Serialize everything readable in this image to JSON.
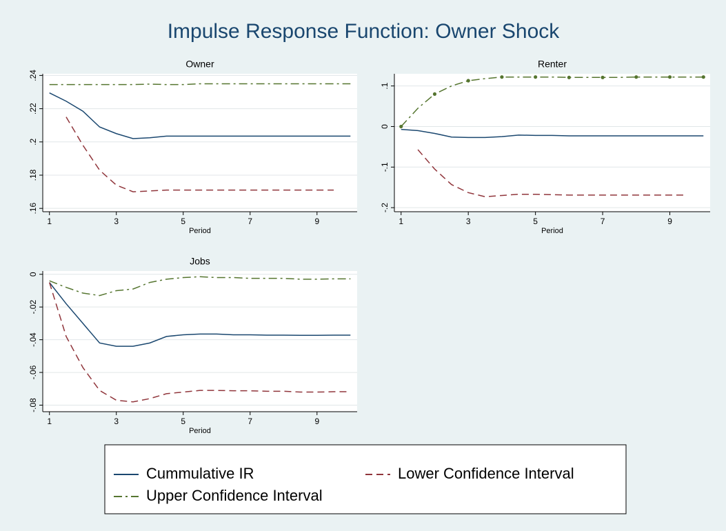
{
  "title": "Impulse Response Function: Owner Shock",
  "chart_data": [
    {
      "type": "line",
      "title": "Owner",
      "xlabel": "Period",
      "x": [
        1,
        1.5,
        2,
        2.5,
        3,
        3.5,
        4,
        4.5,
        5,
        5.5,
        6,
        6.5,
        7,
        7.5,
        8,
        8.5,
        9,
        9.5,
        10
      ],
      "xlim": [
        0.8,
        10.2
      ],
      "xticks": [
        1,
        3,
        5,
        7,
        9
      ],
      "ylim": [
        0.158,
        0.241
      ],
      "yticks": [
        {
          "value": 0.16,
          "label": ".16"
        },
        {
          "value": 0.18,
          "label": ".18"
        },
        {
          "value": 0.2,
          "label": ".2"
        },
        {
          "value": 0.22,
          "label": ".22"
        },
        {
          "value": 0.24,
          "label": ".24"
        }
      ],
      "grid": true,
      "series": [
        {
          "name": "Cummulative IR",
          "color": "#1a476f",
          "dash": "solid",
          "values": [
            0.2295,
            0.2245,
            0.2185,
            0.209,
            0.205,
            0.202,
            0.2025,
            0.2035,
            0.2035,
            0.2035,
            0.2035,
            0.2035,
            0.2035,
            0.2035,
            0.2035,
            0.2035,
            0.2035,
            0.2035,
            0.2035
          ]
        },
        {
          "name": "Lower Confidence Interval",
          "color": "#90353b",
          "dash": "dash",
          "values": [
            null,
            0.215,
            0.198,
            0.183,
            0.174,
            0.17,
            0.1705,
            0.171,
            0.171,
            0.171,
            0.171,
            0.171,
            0.171,
            0.171,
            0.171,
            0.171,
            0.171,
            0.171,
            null
          ]
        },
        {
          "name": "Upper Confidence Interval",
          "color": "#55752f",
          "dash": "dashdot",
          "values": [
            0.2345,
            0.2345,
            0.2345,
            0.2345,
            0.2345,
            0.2345,
            0.2348,
            0.2345,
            0.2345,
            0.235,
            0.235,
            0.235,
            0.235,
            0.235,
            0.235,
            0.235,
            0.235,
            0.235,
            0.235
          ]
        }
      ]
    },
    {
      "type": "line",
      "title": "Renter",
      "xlabel": "Period",
      "x": [
        1,
        1.5,
        2,
        2.5,
        3,
        3.5,
        4,
        4.5,
        5,
        5.5,
        6,
        6.5,
        7,
        7.5,
        8,
        8.5,
        9,
        9.5,
        10
      ],
      "xlim": [
        0.8,
        10.2
      ],
      "xticks": [
        1,
        3,
        5,
        7,
        9
      ],
      "ylim": [
        -0.21,
        0.13
      ],
      "yticks": [
        {
          "value": -0.2,
          "label": "-.2"
        },
        {
          "value": -0.1,
          "label": "-.1"
        },
        0,
        {
          "value": 0.1,
          "label": ".1"
        }
      ],
      "grid": true,
      "series": [
        {
          "name": "Cummulative IR",
          "color": "#1a476f",
          "dash": "solid",
          "values": [
            -0.007,
            -0.01,
            -0.017,
            -0.026,
            -0.027,
            -0.027,
            -0.025,
            -0.021,
            -0.022,
            -0.022,
            -0.023,
            -0.023,
            -0.023,
            -0.023,
            -0.023,
            -0.023,
            -0.023,
            -0.023,
            -0.023
          ]
        },
        {
          "name": "Lower Confidence Interval",
          "color": "#90353b",
          "dash": "dash",
          "values": [
            null,
            -0.057,
            -0.105,
            -0.143,
            -0.163,
            -0.173,
            -0.17,
            -0.167,
            -0.167,
            -0.168,
            -0.169,
            -0.169,
            -0.169,
            -0.169,
            -0.169,
            -0.169,
            -0.169,
            -0.169,
            null
          ]
        },
        {
          "name": "Upper Confidence Interval",
          "color": "#55752f",
          "dash": "dashdot",
          "markers": true,
          "values": [
            0,
            0.045,
            0.08,
            0.1,
            0.113,
            0.118,
            0.122,
            0.122,
            0.122,
            0.122,
            0.121,
            0.121,
            0.121,
            0.121,
            0.122,
            0.122,
            0.122,
            0.122,
            0.122
          ]
        }
      ]
    },
    {
      "type": "line",
      "title": "Jobs",
      "xlabel": "Period",
      "x": [
        1,
        1.5,
        2,
        2.5,
        3,
        3.5,
        4,
        4.5,
        5,
        5.5,
        6,
        6.5,
        7,
        7.5,
        8,
        8.5,
        9,
        9.5,
        10
      ],
      "xlim": [
        0.8,
        10.2
      ],
      "xticks": [
        1,
        3,
        5,
        7,
        9
      ],
      "ylim": [
        -0.084,
        0.002
      ],
      "yticks": [
        {
          "value": -0.08,
          "label": "-.08"
        },
        {
          "value": -0.06,
          "label": "-.06"
        },
        {
          "value": -0.04,
          "label": "-.04"
        },
        {
          "value": -0.02,
          "label": "-.02"
        },
        0
      ],
      "grid": true,
      "series": [
        {
          "name": "Cummulative IR",
          "color": "#1a476f",
          "dash": "solid",
          "values": [
            -0.005,
            -0.018,
            -0.03,
            -0.042,
            -0.044,
            -0.044,
            -0.042,
            -0.038,
            -0.037,
            -0.0365,
            -0.0365,
            -0.037,
            -0.037,
            -0.0372,
            -0.0372,
            -0.0373,
            -0.0373,
            -0.0372,
            -0.0372
          ]
        },
        {
          "name": "Lower Confidence Interval",
          "color": "#90353b",
          "dash": "dash",
          "values": [
            -0.005,
            -0.038,
            -0.057,
            -0.071,
            -0.077,
            -0.078,
            -0.076,
            -0.073,
            -0.072,
            -0.071,
            -0.071,
            -0.0712,
            -0.0712,
            -0.0715,
            -0.0715,
            -0.072,
            -0.072,
            -0.0718,
            -0.0718
          ]
        },
        {
          "name": "Upper Confidence Interval",
          "color": "#55752f",
          "dash": "dashdot",
          "values": [
            -0.004,
            -0.008,
            -0.0115,
            -0.013,
            -0.01,
            -0.009,
            -0.005,
            -0.003,
            -0.002,
            -0.0015,
            -0.002,
            -0.002,
            -0.0025,
            -0.0025,
            -0.0025,
            -0.003,
            -0.003,
            -0.0028,
            -0.0028
          ]
        }
      ]
    }
  ]
}
